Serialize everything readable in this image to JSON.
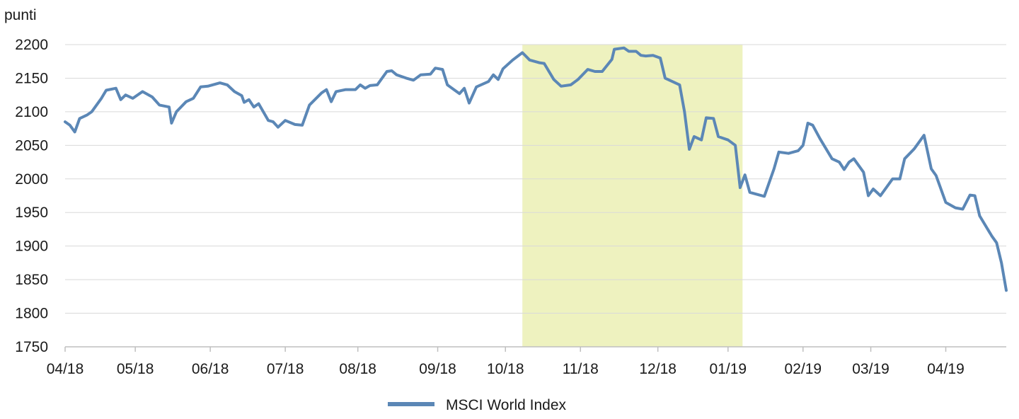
{
  "chart_data": {
    "type": "line",
    "ylabel": "punti",
    "ylim": [
      1750,
      2200
    ],
    "yticks": [
      "1750",
      "1800",
      "1850",
      "1900",
      "1950",
      "2000",
      "2050",
      "2100",
      "2150",
      "2200"
    ],
    "xlim": [
      "2018-04-02",
      "2019-04-26"
    ],
    "xticks": [
      {
        "label": "04/18",
        "date": "2018-04-02"
      },
      {
        "label": "05/18",
        "date": "2018-05-01"
      },
      {
        "label": "06/18",
        "date": "2018-06-01"
      },
      {
        "label": "07/18",
        "date": "2018-07-02"
      },
      {
        "label": "08/18",
        "date": "2018-08-01"
      },
      {
        "label": "09/18",
        "date": "2018-09-03"
      },
      {
        "label": "10/18",
        "date": "2018-10-01"
      },
      {
        "label": "11/18",
        "date": "2018-11-01"
      },
      {
        "label": "12/18",
        "date": "2018-12-03"
      },
      {
        "label": "01/19",
        "date": "2019-01-01"
      },
      {
        "label": "02/19",
        "date": "2019-02-01"
      },
      {
        "label": "03/19",
        "date": "2019-03-01"
      },
      {
        "label": "04/19",
        "date": "2019-04-01"
      }
    ],
    "grid": "horizontal",
    "legend_position": "bottom-center",
    "highlight": {
      "start": "2018-10-08",
      "end": "2019-01-07",
      "color": "#eef2bf"
    },
    "series": [
      {
        "name": "MSCI World Index",
        "color": "#5b87b6",
        "points": [
          [
            "2018-04-02",
            2085
          ],
          [
            "2018-04-04",
            2080
          ],
          [
            "2018-04-06",
            2070
          ],
          [
            "2018-04-08",
            2090
          ],
          [
            "2018-04-11",
            2095
          ],
          [
            "2018-04-13",
            2100
          ],
          [
            "2018-04-17",
            2120
          ],
          [
            "2018-04-19",
            2132
          ],
          [
            "2018-04-23",
            2135
          ],
          [
            "2018-04-25",
            2118
          ],
          [
            "2018-04-27",
            2125
          ],
          [
            "2018-04-30",
            2120
          ],
          [
            "2018-05-04",
            2130
          ],
          [
            "2018-05-08",
            2122
          ],
          [
            "2018-05-11",
            2110
          ],
          [
            "2018-05-15",
            2107
          ],
          [
            "2018-05-16",
            2083
          ],
          [
            "2018-05-18",
            2100
          ],
          [
            "2018-05-22",
            2115
          ],
          [
            "2018-05-25",
            2120
          ],
          [
            "2018-05-28",
            2137
          ],
          [
            "2018-05-31",
            2138
          ],
          [
            "2018-06-05",
            2143
          ],
          [
            "2018-06-08",
            2140
          ],
          [
            "2018-06-11",
            2130
          ],
          [
            "2018-06-14",
            2124
          ],
          [
            "2018-06-15",
            2114
          ],
          [
            "2018-06-17",
            2118
          ],
          [
            "2018-06-19",
            2107
          ],
          [
            "2018-06-21",
            2112
          ],
          [
            "2018-06-25",
            2087
          ],
          [
            "2018-06-27",
            2085
          ],
          [
            "2018-06-29",
            2077
          ],
          [
            "2018-07-02",
            2087
          ],
          [
            "2018-07-06",
            2081
          ],
          [
            "2018-07-09",
            2080
          ],
          [
            "2018-07-12",
            2110
          ],
          [
            "2018-07-17",
            2128
          ],
          [
            "2018-07-19",
            2133
          ],
          [
            "2018-07-21",
            2115
          ],
          [
            "2018-07-23",
            2130
          ],
          [
            "2018-07-27",
            2133
          ],
          [
            "2018-07-31",
            2133
          ],
          [
            "2018-08-02",
            2140
          ],
          [
            "2018-08-04",
            2135
          ],
          [
            "2018-08-06",
            2139
          ],
          [
            "2018-08-09",
            2140
          ],
          [
            "2018-08-13",
            2160
          ],
          [
            "2018-08-15",
            2161
          ],
          [
            "2018-08-17",
            2155
          ],
          [
            "2018-08-21",
            2150
          ],
          [
            "2018-08-24",
            2147
          ],
          [
            "2018-08-27",
            2155
          ],
          [
            "2018-08-31",
            2156
          ],
          [
            "2018-09-02",
            2165
          ],
          [
            "2018-09-05",
            2163
          ],
          [
            "2018-09-07",
            2140
          ],
          [
            "2018-09-12",
            2127
          ],
          [
            "2018-09-14",
            2135
          ],
          [
            "2018-09-16",
            2113
          ],
          [
            "2018-09-19",
            2137
          ],
          [
            "2018-09-24",
            2145
          ],
          [
            "2018-09-26",
            2155
          ],
          [
            "2018-09-28",
            2148
          ],
          [
            "2018-09-30",
            2164
          ],
          [
            "2018-10-04",
            2177
          ],
          [
            "2018-10-08",
            2188
          ],
          [
            "2018-10-11",
            2177
          ],
          [
            "2018-10-15",
            2173
          ],
          [
            "2018-10-17",
            2172
          ],
          [
            "2018-10-21",
            2148
          ],
          [
            "2018-10-24",
            2138
          ],
          [
            "2018-10-28",
            2140
          ],
          [
            "2018-10-31",
            2148
          ],
          [
            "2018-11-04",
            2163
          ],
          [
            "2018-11-07",
            2160
          ],
          [
            "2018-11-10",
            2160
          ],
          [
            "2018-11-14",
            2178
          ],
          [
            "2018-11-15",
            2193
          ],
          [
            "2018-11-19",
            2195
          ],
          [
            "2018-11-21",
            2190
          ],
          [
            "2018-11-24",
            2190
          ],
          [
            "2018-11-26",
            2184
          ],
          [
            "2018-11-28",
            2183
          ],
          [
            "2018-12-01",
            2184
          ],
          [
            "2018-12-04",
            2180
          ],
          [
            "2018-12-06",
            2150
          ],
          [
            "2018-12-09",
            2145
          ],
          [
            "2018-12-12",
            2140
          ],
          [
            "2018-12-14",
            2100
          ],
          [
            "2018-12-16",
            2044
          ],
          [
            "2018-12-18",
            2063
          ],
          [
            "2018-12-21",
            2058
          ],
          [
            "2018-12-23",
            2091
          ],
          [
            "2018-12-26",
            2090
          ],
          [
            "2018-12-28",
            2063
          ],
          [
            "2019-01-01",
            2058
          ],
          [
            "2019-01-04",
            2050
          ],
          [
            "2019-01-06",
            1987
          ],
          [
            "2019-01-08",
            2006
          ],
          [
            "2019-01-10",
            1980
          ],
          [
            "2019-01-14",
            1976
          ],
          [
            "2019-01-16",
            1974
          ],
          [
            "2019-01-20",
            2015
          ],
          [
            "2019-01-22",
            2040
          ],
          [
            "2019-01-26",
            2038
          ],
          [
            "2019-01-30",
            2042
          ],
          [
            "2019-02-01",
            2050
          ],
          [
            "2019-02-03",
            2083
          ],
          [
            "2019-02-05",
            2080
          ],
          [
            "2019-02-08",
            2060
          ],
          [
            "2019-02-13",
            2030
          ],
          [
            "2019-02-16",
            2025
          ],
          [
            "2019-02-18",
            2014
          ],
          [
            "2019-02-20",
            2025
          ],
          [
            "2019-02-22",
            2030
          ],
          [
            "2019-02-26",
            2010
          ],
          [
            "2019-02-28",
            1975
          ],
          [
            "2019-03-02",
            1985
          ],
          [
            "2019-03-05",
            1975
          ],
          [
            "2019-03-10",
            2000
          ],
          [
            "2019-03-13",
            2000
          ],
          [
            "2019-03-15",
            2030
          ],
          [
            "2019-03-19",
            2045
          ],
          [
            "2019-03-23",
            2065
          ],
          [
            "2019-03-26",
            2015
          ],
          [
            "2019-03-28",
            2005
          ],
          [
            "2019-04-01",
            1965
          ],
          [
            "2019-04-05",
            1957
          ],
          [
            "2019-04-08",
            1955
          ],
          [
            "2019-04-11",
            1976
          ],
          [
            "2019-04-13",
            1975
          ],
          [
            "2019-04-15",
            1945
          ],
          [
            "2019-04-20",
            1915
          ],
          [
            "2019-04-22",
            1905
          ],
          [
            "2019-04-24",
            1875
          ],
          [
            "2019-04-26",
            1834
          ]
        ]
      }
    ],
    "legend": [
      "MSCI World Index"
    ]
  }
}
